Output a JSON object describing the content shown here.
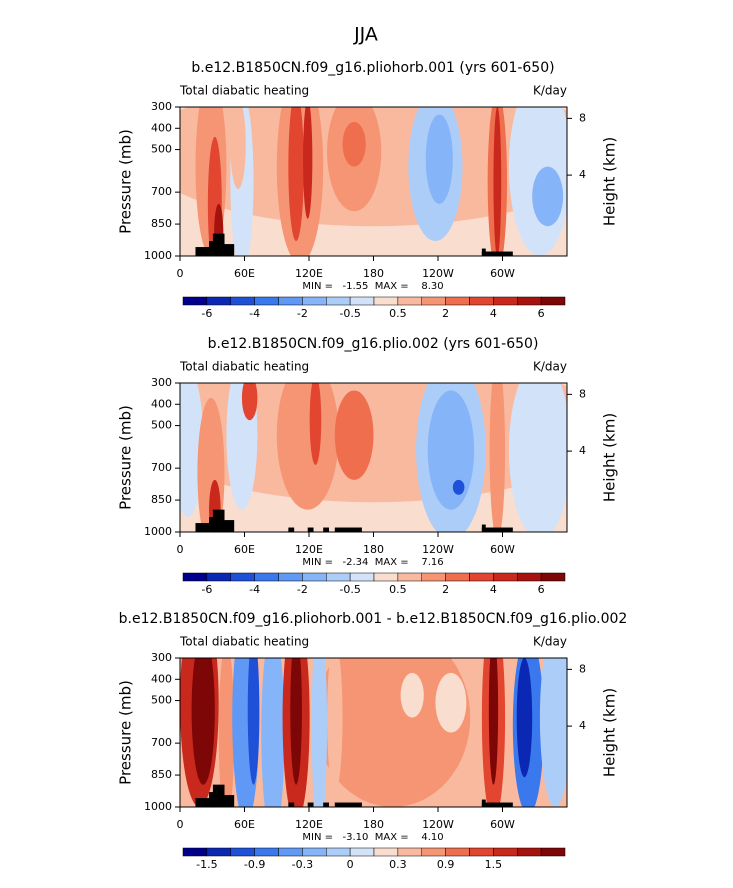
{
  "title": "JJA",
  "chart_data": [
    {
      "type": "contour",
      "title": "b.e12.B1850CN.f09_g16.pliohorb.001 (yrs 601-650)",
      "subtitle": "Total diabatic heating",
      "units": "K/day",
      "ylabel": "Pressure (mb)",
      "y2label": "Height (km)",
      "ylim": [
        1000,
        300
      ],
      "yticks": [
        300,
        400,
        500,
        700,
        850,
        1000
      ],
      "y2lim": [
        -1.7,
        8.8
      ],
      "y2ticks": [
        4,
        8
      ],
      "xlim": [
        0,
        360
      ],
      "xticks": [
        0,
        {
          "value": 60,
          "label": "60E"
        },
        {
          "value": 120,
          "label": "120E"
        },
        180,
        {
          "value": 240,
          "label": "120W"
        },
        {
          "value": 300,
          "label": "60W"
        }
      ],
      "stats": "MIN =   -1.55  MAX =    8.30",
      "colorbar": {
        "colors": [
          "#00008c",
          "#0a28b4",
          "#1f50d8",
          "#3a78ee",
          "#5f98f5",
          "#86b4f8",
          "#adcdf9",
          "#d2e3f9",
          "#f9ddcf",
          "#f9b99f",
          "#f59574",
          "#ee6e4e",
          "#e24630",
          "#c9281c",
          "#a6130f",
          "#7d0606"
        ],
        "labels": [
          -6,
          -4,
          -2,
          -0.5,
          0.5,
          2,
          4,
          6
        ]
      }
    },
    {
      "type": "contour",
      "title": "b.e12.B1850CN.f09_g16.plio.002 (yrs 601-650)",
      "subtitle": "Total diabatic heating",
      "units": "K/day",
      "ylabel": "Pressure (mb)",
      "y2label": "Height (km)",
      "ylim": [
        1000,
        300
      ],
      "yticks": [
        300,
        400,
        500,
        700,
        850,
        1000
      ],
      "y2lim": [
        -1.7,
        8.8
      ],
      "y2ticks": [
        4,
        8
      ],
      "xlim": [
        0,
        360
      ],
      "xticks": [
        0,
        {
          "value": 60,
          "label": "60E"
        },
        {
          "value": 120,
          "label": "120E"
        },
        180,
        {
          "value": 240,
          "label": "120W"
        },
        {
          "value": 300,
          "label": "60W"
        }
      ],
      "stats": "MIN =   -2.34  MAX =    7.16",
      "colorbar": {
        "colors": [
          "#00008c",
          "#0a28b4",
          "#1f50d8",
          "#3a78ee",
          "#5f98f5",
          "#86b4f8",
          "#adcdf9",
          "#d2e3f9",
          "#f9ddcf",
          "#f9b99f",
          "#f59574",
          "#ee6e4e",
          "#e24630",
          "#c9281c",
          "#a6130f",
          "#7d0606"
        ],
        "labels": [
          -6,
          -4,
          -2,
          -0.5,
          0.5,
          2,
          4,
          6
        ]
      }
    },
    {
      "type": "contour",
      "title": "b.e12.B1850CN.f09_g16.pliohorb.001 - b.e12.B1850CN.f09_g16.plio.002",
      "subtitle": "Total diabatic heating",
      "units": "K/day",
      "ylabel": "Pressure (mb)",
      "y2label": "Height (km)",
      "ylim": [
        1000,
        300
      ],
      "yticks": [
        300,
        400,
        500,
        700,
        850,
        1000
      ],
      "y2lim": [
        -1.7,
        8.8
      ],
      "y2ticks": [
        4,
        8
      ],
      "xlim": [
        0,
        360
      ],
      "xticks": [
        0,
        {
          "value": 60,
          "label": "60E"
        },
        {
          "value": 120,
          "label": "120E"
        },
        180,
        {
          "value": 240,
          "label": "120W"
        },
        {
          "value": 300,
          "label": "60W"
        }
      ],
      "stats": "MIN =   -3.10  MAX =    4.10",
      "colorbar": {
        "colors": [
          "#00008c",
          "#0a28b4",
          "#1f50d8",
          "#3a78ee",
          "#5f98f5",
          "#86b4f8",
          "#adcdf9",
          "#d2e3f9",
          "#f9ddcf",
          "#f9b99f",
          "#f59574",
          "#ee6e4e",
          "#e24630",
          "#c9281c",
          "#a6130f",
          "#7d0606"
        ],
        "labels": [
          -1.5,
          -0.9,
          -0.3,
          0,
          0.3,
          0.9,
          1.5
        ]
      }
    }
  ]
}
